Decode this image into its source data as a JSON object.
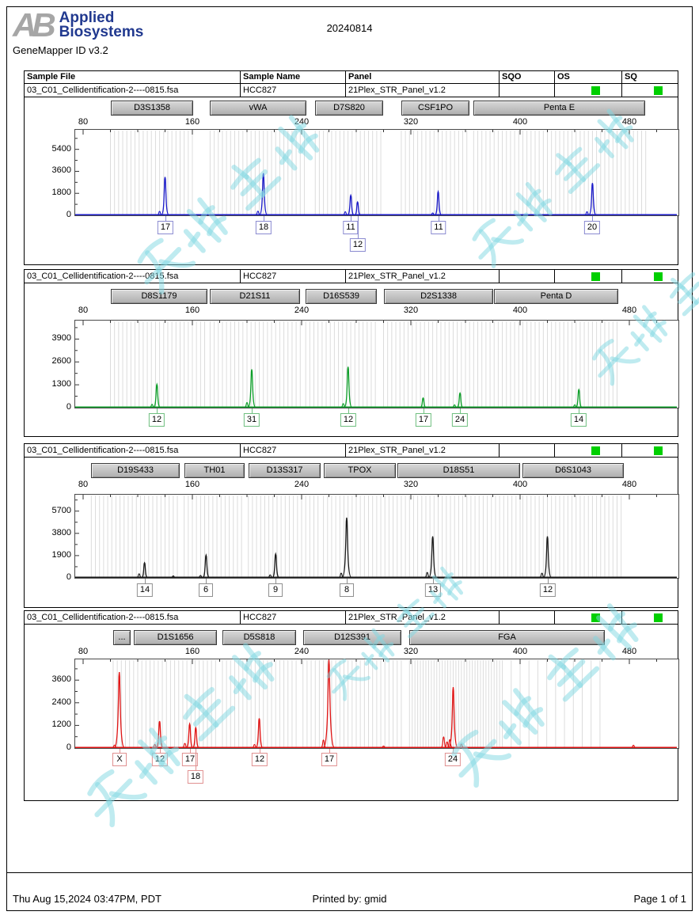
{
  "header": {
    "logo_ab": "AB",
    "brand_line1": "Applied",
    "brand_line2": "Biosystems",
    "app_title": "GeneMapper ID v3.2",
    "date": "20240814"
  },
  "table": {
    "columns": [
      "Sample File",
      "Sample Name",
      "Panel",
      "SQO",
      "OS",
      "SQ"
    ]
  },
  "sample": {
    "file": "03_C01_Cellidentification-2----0815.fsa",
    "name": "HCC827",
    "panel": "21Plex_STR_Panel_v1.2",
    "sqo": "",
    "os_status_color": "#00cf00",
    "sq_status_color": "#00cf00"
  },
  "chart_data": [
    {
      "type": "line",
      "title": "Blue dye channel electropherogram",
      "color": "#1a1ac8",
      "label_border": "#8a8ad0",
      "x_axis": {
        "ticks": [
          80,
          160,
          240,
          320,
          400,
          480
        ]
      },
      "xlim": [
        73,
        506
      ],
      "y_axis": {
        "ticks": [
          0,
          1800,
          3600,
          5400
        ]
      },
      "ylim": [
        0,
        7000
      ],
      "markers": [
        {
          "name": "D3S1358",
          "start_bp": 100,
          "end_bp": 160
        },
        {
          "name": "vWA",
          "start_bp": 173,
          "end_bp": 244
        },
        {
          "name": "D7S820",
          "start_bp": 250,
          "end_bp": 300
        },
        {
          "name": "CSF1PO",
          "start_bp": 313,
          "end_bp": 363
        },
        {
          "name": "Penta E",
          "start_bp": 366,
          "end_bp": 492
        }
      ],
      "peaks": [
        {
          "allele": "17",
          "size_bp": 140,
          "height_rfu": 3100
        },
        {
          "allele": "18",
          "size_bp": 212,
          "height_rfu": 3400
        },
        {
          "allele": "11",
          "size_bp": 276,
          "height_rfu": 1600
        },
        {
          "allele": "12",
          "size_bp": 281,
          "height_rfu": 1050,
          "label_row": 2
        },
        {
          "allele": "11",
          "size_bp": 340,
          "height_rfu": 1900
        },
        {
          "allele": "20",
          "size_bp": 453,
          "height_rfu": 2600
        }
      ],
      "minor_peaks": [
        [
          136,
          280
        ],
        [
          208,
          300
        ],
        [
          272,
          250
        ],
        [
          336,
          150
        ],
        [
          449,
          250
        ]
      ]
    },
    {
      "type": "line",
      "title": "Green dye channel electropherogram",
      "color": "#0c9e28",
      "label_border": "#6fbf7f",
      "x_axis": {
        "ticks": [
          80,
          160,
          240,
          320,
          400,
          480
        ]
      },
      "xlim": [
        73,
        506
      ],
      "y_axis": {
        "ticks": [
          0,
          1300,
          2600,
          3900
        ]
      },
      "ylim": [
        0,
        4950
      ],
      "markers": [
        {
          "name": "D8S1179",
          "start_bp": 100,
          "end_bp": 171
        },
        {
          "name": "D21S11",
          "start_bp": 173,
          "end_bp": 239
        },
        {
          "name": "D16S539",
          "start_bp": 243,
          "end_bp": 295
        },
        {
          "name": "D2S1338",
          "start_bp": 300,
          "end_bp": 380
        },
        {
          "name": "Penta D",
          "start_bp": 381,
          "end_bp": 472
        }
      ],
      "peaks": [
        {
          "allele": "12",
          "size_bp": 134,
          "height_rfu": 1300
        },
        {
          "allele": "31",
          "size_bp": 203.5,
          "height_rfu": 2150
        },
        {
          "allele": "12",
          "size_bp": 274,
          "height_rfu": 2300
        },
        {
          "allele": "17",
          "size_bp": 329,
          "height_rfu": 520
        },
        {
          "allele": "24",
          "size_bp": 356,
          "height_rfu": 800
        },
        {
          "allele": "14",
          "size_bp": 443,
          "height_rfu": 1000
        }
      ],
      "minor_peaks": [
        [
          130.5,
          160
        ],
        [
          200,
          260
        ],
        [
          270.5,
          200
        ],
        [
          352,
          130
        ],
        [
          440,
          130
        ]
      ]
    },
    {
      "type": "line",
      "title": "Black dye channel electropherogram",
      "color": "#1a1a1a",
      "label_border": "#909090",
      "x_axis": {
        "ticks": [
          80,
          160,
          240,
          320,
          400,
          480
        ]
      },
      "xlim": [
        73,
        506
      ],
      "y_axis": {
        "ticks": [
          0,
          1900,
          3800,
          5700
        ]
      },
      "ylim": [
        0,
        7100
      ],
      "markers": [
        {
          "name": "D19S433",
          "start_bp": 86,
          "end_bp": 151
        },
        {
          "name": "TH01",
          "start_bp": 154,
          "end_bp": 198
        },
        {
          "name": "D13S317",
          "start_bp": 201,
          "end_bp": 254
        },
        {
          "name": "TPOX",
          "start_bp": 256,
          "end_bp": 309
        },
        {
          "name": "D18S51",
          "start_bp": 310,
          "end_bp": 400
        },
        {
          "name": "D6S1043",
          "start_bp": 402,
          "end_bp": 476
        }
      ],
      "peaks": [
        {
          "allele": "14",
          "size_bp": 125,
          "height_rfu": 1250
        },
        {
          "allele": "6",
          "size_bp": 170,
          "height_rfu": 1900
        },
        {
          "allele": "9",
          "size_bp": 221,
          "height_rfu": 2000
        },
        {
          "allele": "8",
          "size_bp": 273,
          "height_rfu": 5100
        },
        {
          "allele": "13",
          "size_bp": 336,
          "height_rfu": 3500
        },
        {
          "allele": "12",
          "size_bp": 420,
          "height_rfu": 3500
        }
      ],
      "minor_peaks": [
        [
          121,
          300
        ],
        [
          166,
          160
        ],
        [
          217,
          210
        ],
        [
          269,
          360
        ],
        [
          332,
          420
        ],
        [
          416,
          360
        ],
        [
          146,
          120
        ]
      ]
    },
    {
      "type": "line",
      "title": "Red dye channel electropherogram",
      "color": "#e01414",
      "label_border": "#e09090",
      "x_axis": {
        "ticks": [
          80,
          160,
          240,
          320,
          400,
          480
        ]
      },
      "xlim": [
        73,
        506
      ],
      "y_axis": {
        "ticks": [
          0,
          1200,
          2400,
          3600
        ]
      },
      "ylim": [
        0,
        4700
      ],
      "markers": [
        {
          "name": "...",
          "start_bp": 102,
          "end_bp": 115
        },
        {
          "name": "D1S1656",
          "start_bp": 117,
          "end_bp": 178
        },
        {
          "name": "D5S818",
          "start_bp": 182,
          "end_bp": 236
        },
        {
          "name": "D12S391",
          "start_bp": 241,
          "end_bp": 313
        },
        {
          "name": "FGA",
          "start_bp": 319,
          "end_bp": 462,
          "bins": [
            [
              319,
              385,
              2
            ],
            [
              387,
              462,
              6.5
            ]
          ]
        }
      ],
      "peaks": [
        {
          "allele": "X",
          "size_bp": 106.5,
          "height_rfu": 4000
        },
        {
          "allele": "12",
          "size_bp": 136,
          "height_rfu": 1400
        },
        {
          "allele": "17",
          "size_bp": 158,
          "height_rfu": 1250
        },
        {
          "allele": "18",
          "size_bp": 162.5,
          "height_rfu": 1050,
          "label_row": 2
        },
        {
          "allele": "12",
          "size_bp": 209,
          "height_rfu": 1550
        },
        {
          "allele": "17",
          "size_bp": 260,
          "height_rfu": 4700,
          "clipped": true
        },
        {
          "allele": "24",
          "size_bp": 351,
          "height_rfu": 3200
        }
      ],
      "minor_peaks": [
        [
          103,
          130
        ],
        [
          132.5,
          160
        ],
        [
          154.5,
          220
        ],
        [
          205.5,
          160
        ],
        [
          256,
          400
        ],
        [
          344,
          560
        ],
        [
          346.5,
          300
        ],
        [
          348.5,
          420
        ],
        [
          357,
          180
        ],
        [
          300,
          80
        ],
        [
          483,
          120
        ]
      ]
    }
  ],
  "watermark": {
    "text": "万物生物",
    "color": "#7fd8e2"
  },
  "footer": {
    "left": "Thu Aug 15,2024 03:47PM, PDT",
    "center": "Printed by: gmid",
    "right": "Page 1 of 1"
  }
}
